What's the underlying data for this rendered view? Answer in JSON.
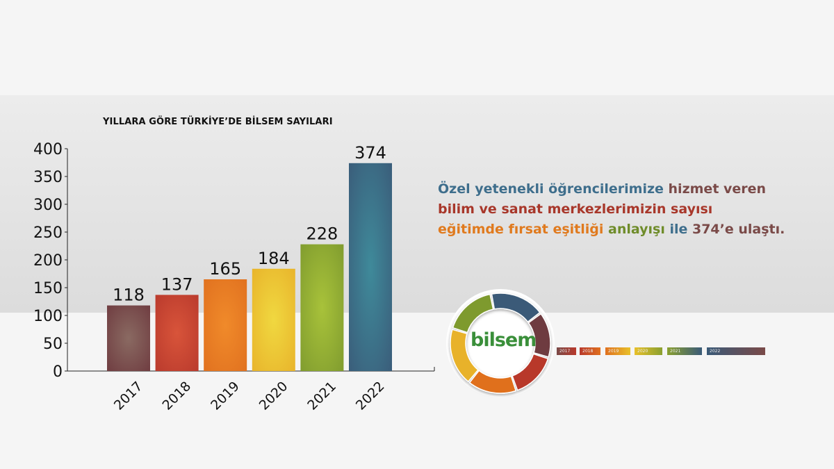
{
  "chart_data": {
    "type": "bar",
    "title": "YILLARA GÖRE TÜRKİYE’DE BİLSEM SAYILARI",
    "categories": [
      "2017",
      "2018",
      "2019",
      "2020",
      "2021",
      "2022"
    ],
    "values": [
      118,
      137,
      165,
      184,
      228,
      374
    ],
    "data_labels": [
      "118",
      "137",
      "165",
      "184",
      "228",
      "374"
    ],
    "yticks": [
      0,
      50,
      100,
      150,
      200,
      250,
      300,
      350,
      400
    ],
    "ylim": [
      0,
      400
    ],
    "xlabel": "",
    "ylabel": "",
    "grid": false,
    "colors": [
      "#6e3a3f",
      "#b8392c",
      "#e0701f",
      "#e8b22a",
      "#7e9a2e",
      "#3a5a78"
    ],
    "center_colors": [
      "#8a6a62",
      "#d8543a",
      "#f08a2a",
      "#f0d840",
      "#a8c23a",
      "#3f8a9a"
    ]
  },
  "headline": {
    "p1": "Özel yetenekli öğrencilerimize ",
    "p2": "hizmet veren",
    "p3": "bilim ve sanat merkezlerimizin sayısı",
    "p4": "eğitimde fırsat eşitliği ",
    "p5": "anlayışı ",
    "p6": "ile ",
    "p7": "374’e ulaştı."
  },
  "logo": {
    "text": "bilsem",
    "colors": [
      "#6e3a3f",
      "#b8392c",
      "#e0701f",
      "#e8b22a",
      "#7e9a2e",
      "#3a5a78"
    ]
  },
  "legend": {
    "items": [
      "2017",
      "2018",
      "2019",
      "2020",
      "2021",
      "2022"
    ],
    "colors": [
      "#7a4a48",
      "#b8392c",
      "#e0701f",
      "#e8c02a",
      "#8aa030",
      "#3a5a78"
    ]
  }
}
